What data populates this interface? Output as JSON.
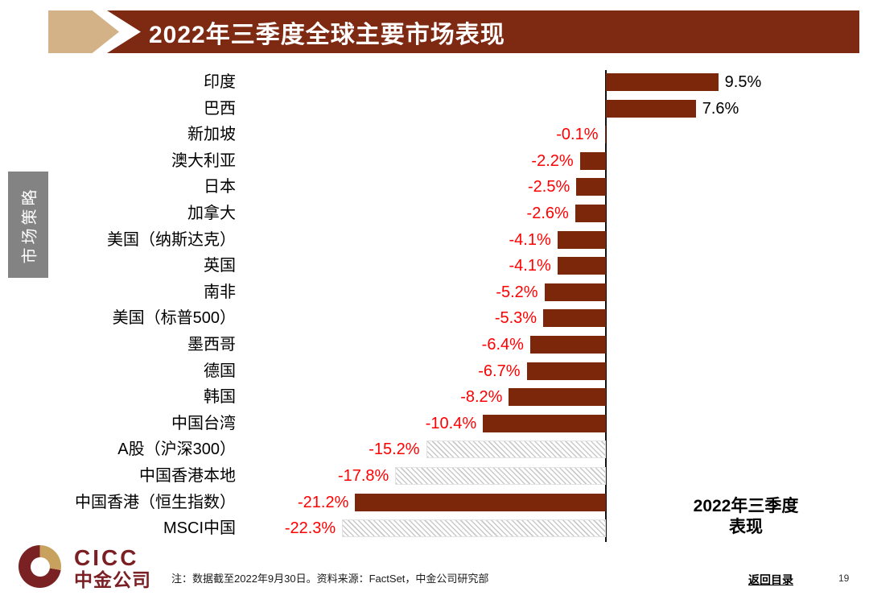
{
  "header": {
    "title": "2022年三季度全球主要市场表现"
  },
  "sidebar": {
    "label": "市场策略"
  },
  "chart_data": {
    "type": "bar",
    "orientation": "horizontal",
    "title": "2022年三季度全球主要市场表现",
    "categories": [
      "印度",
      "巴西",
      "新加坡",
      "澳大利亚",
      "日本",
      "加拿大",
      "美国（纳斯达克）",
      "英国",
      "南非",
      "美国（标普500）",
      "墨西哥",
      "德国",
      "韩国",
      "中国台湾",
      "A股（沪深300）",
      "中国香港本地",
      "中国香港（恒生指数）",
      "MSCI中国"
    ],
    "values": [
      9.5,
      7.6,
      -0.1,
      -2.2,
      -2.5,
      -2.6,
      -4.1,
      -4.1,
      -5.2,
      -5.3,
      -6.4,
      -6.7,
      -8.2,
      -10.4,
      -15.2,
      -17.8,
      -21.2,
      -22.3
    ],
    "value_labels": [
      "9.5%",
      "7.6%",
      "-0.1%",
      "-2.2%",
      "-2.5%",
      "-2.6%",
      "-4.1%",
      "-4.1%",
      "-5.2%",
      "-5.3%",
      "-6.4%",
      "-6.7%",
      "-8.2%",
      "-10.4%",
      "-15.2%",
      "-17.8%",
      "-21.2%",
      "-22.3%"
    ],
    "hatched": [
      false,
      false,
      false,
      false,
      false,
      false,
      false,
      false,
      false,
      false,
      false,
      false,
      false,
      false,
      true,
      true,
      false,
      true
    ],
    "xlim": [
      -25,
      12
    ],
    "grid": false,
    "bar_color": "#7C2709",
    "hatch_color": "#C9C9C9",
    "positive_label_color": "#000000",
    "negative_label_color": "#FF0000",
    "annotation": {
      "line1": "2022年三季度",
      "line2": "表现"
    }
  },
  "footer": {
    "note": "注：数据截至2022年9月30日。资料来源：FactSet，中金公司研究部",
    "logo": {
      "en": "CICC",
      "cn": "中金公司"
    },
    "back_link": "返回目录",
    "page_number": "19"
  }
}
